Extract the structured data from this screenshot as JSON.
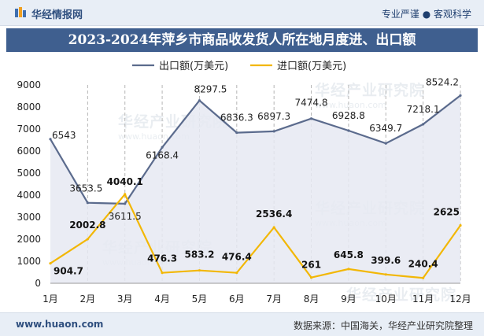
{
  "header": {
    "brand": "华经情报网",
    "tagline": "专业严谨 ● 客观科学",
    "title": "2023-2024年萍乡市商品收发货人所在地月度进、出口额"
  },
  "footer": {
    "site": "www.huaon.com",
    "source": "数据来源：中国海关，华经产业研究院整理"
  },
  "watermark": {
    "text": "华经产业研究院",
    "url": "www.huaon.com"
  },
  "colors": {
    "export": "#5b6b8d",
    "import": "#f2b705",
    "area": "#e6e9f2",
    "titlebar": "#3f5f8f"
  },
  "chart_data": {
    "type": "line",
    "categories": [
      "1月",
      "2月",
      "3月",
      "4月",
      "5月",
      "6月",
      "7月",
      "8月",
      "9月",
      "10月",
      "11月",
      "12月"
    ],
    "series": [
      {
        "name": "出口额(万美元)",
        "values": [
          6543,
          3653.5,
          3611.5,
          6168.4,
          8297.5,
          6836.3,
          6897.3,
          7474.8,
          6928.8,
          6349.7,
          7218.1,
          8524.2
        ],
        "labels": [
          "6543",
          "3653.5",
          "3611.5",
          "6168.4",
          "8297.5",
          "6836.3",
          "6897.3",
          "7474.8",
          "6928.8",
          "6349.7",
          "7218.1",
          "8524.2"
        ],
        "color": "#5b6b8d",
        "fill": true
      },
      {
        "name": "进口额(万美元)",
        "values": [
          904.7,
          2002.8,
          4040.1,
          476.3,
          583.2,
          476.4,
          2536.4,
          261,
          645.8,
          399.6,
          240.4,
          2625
        ],
        "labels": [
          "904.7",
          "2002.8",
          "4040.1",
          "476.3",
          "583.2",
          "476.4",
          "2536.4",
          "261",
          "645.8",
          "399.6",
          "240.4",
          "2625"
        ],
        "color": "#f2b705",
        "fill": false
      }
    ],
    "ylim": [
      0,
      9000
    ],
    "yticks": [
      "0",
      "1000",
      "2000",
      "3000",
      "4000",
      "5000",
      "6000",
      "7000",
      "8000",
      "9000"
    ],
    "legend_position": "top-left",
    "grid": "vertical dashed lines at each month"
  }
}
